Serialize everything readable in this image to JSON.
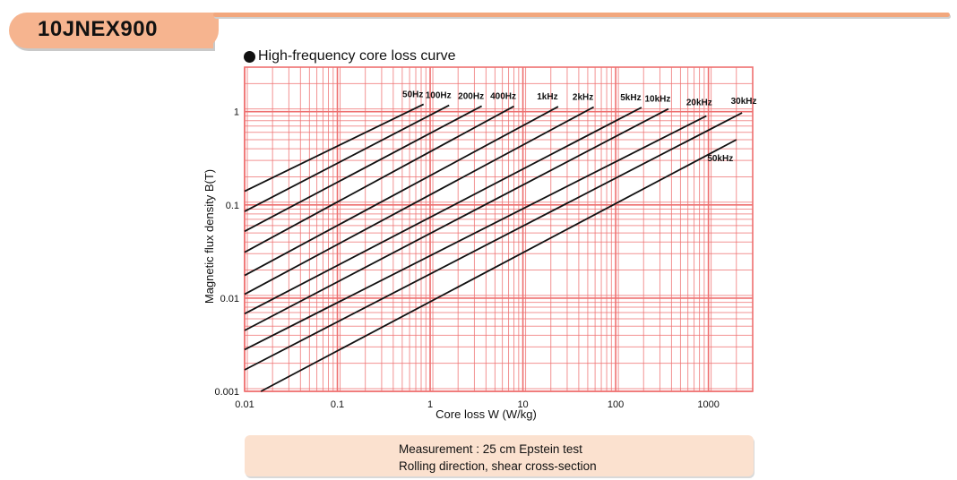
{
  "header": {
    "model": "10JNEX900"
  },
  "chart_title": "High-frequency core loss curve",
  "note": {
    "line1": "Measurement : 25 cm Epstein test",
    "line2": "Rolling direction, shear cross-section"
  },
  "colors": {
    "grid": "#ee6f6f",
    "curve": "#111111",
    "header": "#f6b48f",
    "note_bg": "#fbe1cf"
  },
  "chart_data": {
    "type": "line",
    "title": "High-frequency core loss curve",
    "xlabel": "Core loss W (W/kg)",
    "ylabel": "Magnetic flux density B(T)",
    "x_scale": "log",
    "y_scale": "log",
    "xlim": [
      0.01,
      3000
    ],
    "ylim": [
      0.001,
      3
    ],
    "x_ticks": [
      0.01,
      0.1,
      1,
      10,
      100,
      1000
    ],
    "x_tick_labels": [
      "0.01",
      "0.1",
      "1",
      "10",
      "100",
      "1000"
    ],
    "y_ticks": [
      0.001,
      0.01,
      0.1,
      1
    ],
    "y_tick_labels": [
      "0.001",
      "0.01",
      "0.1",
      "1"
    ],
    "grid": true,
    "series": [
      {
        "name": "50Hz",
        "x": [
          0.01,
          0.85
        ],
        "y": [
          0.14,
          1.2
        ]
      },
      {
        "name": "100Hz",
        "x": [
          0.01,
          1.6
        ],
        "y": [
          0.085,
          1.17
        ]
      },
      {
        "name": "200Hz",
        "x": [
          0.01,
          3.6
        ],
        "y": [
          0.052,
          1.15
        ]
      },
      {
        "name": "400Hz",
        "x": [
          0.01,
          8.0
        ],
        "y": [
          0.031,
          1.14
        ]
      },
      {
        "name": "1kHz",
        "x": [
          0.01,
          24
        ],
        "y": [
          0.0175,
          1.13
        ]
      },
      {
        "name": "2kHz",
        "x": [
          0.01,
          58
        ],
        "y": [
          0.011,
          1.12
        ]
      },
      {
        "name": "5kHz",
        "x": [
          0.01,
          190
        ],
        "y": [
          0.0068,
          1.11
        ]
      },
      {
        "name": "10kHz",
        "x": [
          0.01,
          370
        ],
        "y": [
          0.0045,
          1.07
        ]
      },
      {
        "name": "20kHz",
        "x": [
          0.01,
          950
        ],
        "y": [
          0.0028,
          0.9
        ]
      },
      {
        "name": "30kHz",
        "x": [
          0.01,
          2300
        ],
        "y": [
          0.0017,
          0.97
        ]
      },
      {
        "name": "50kHz",
        "x": [
          0.015,
          2000
        ],
        "y": [
          0.001,
          0.5
        ]
      }
    ]
  }
}
